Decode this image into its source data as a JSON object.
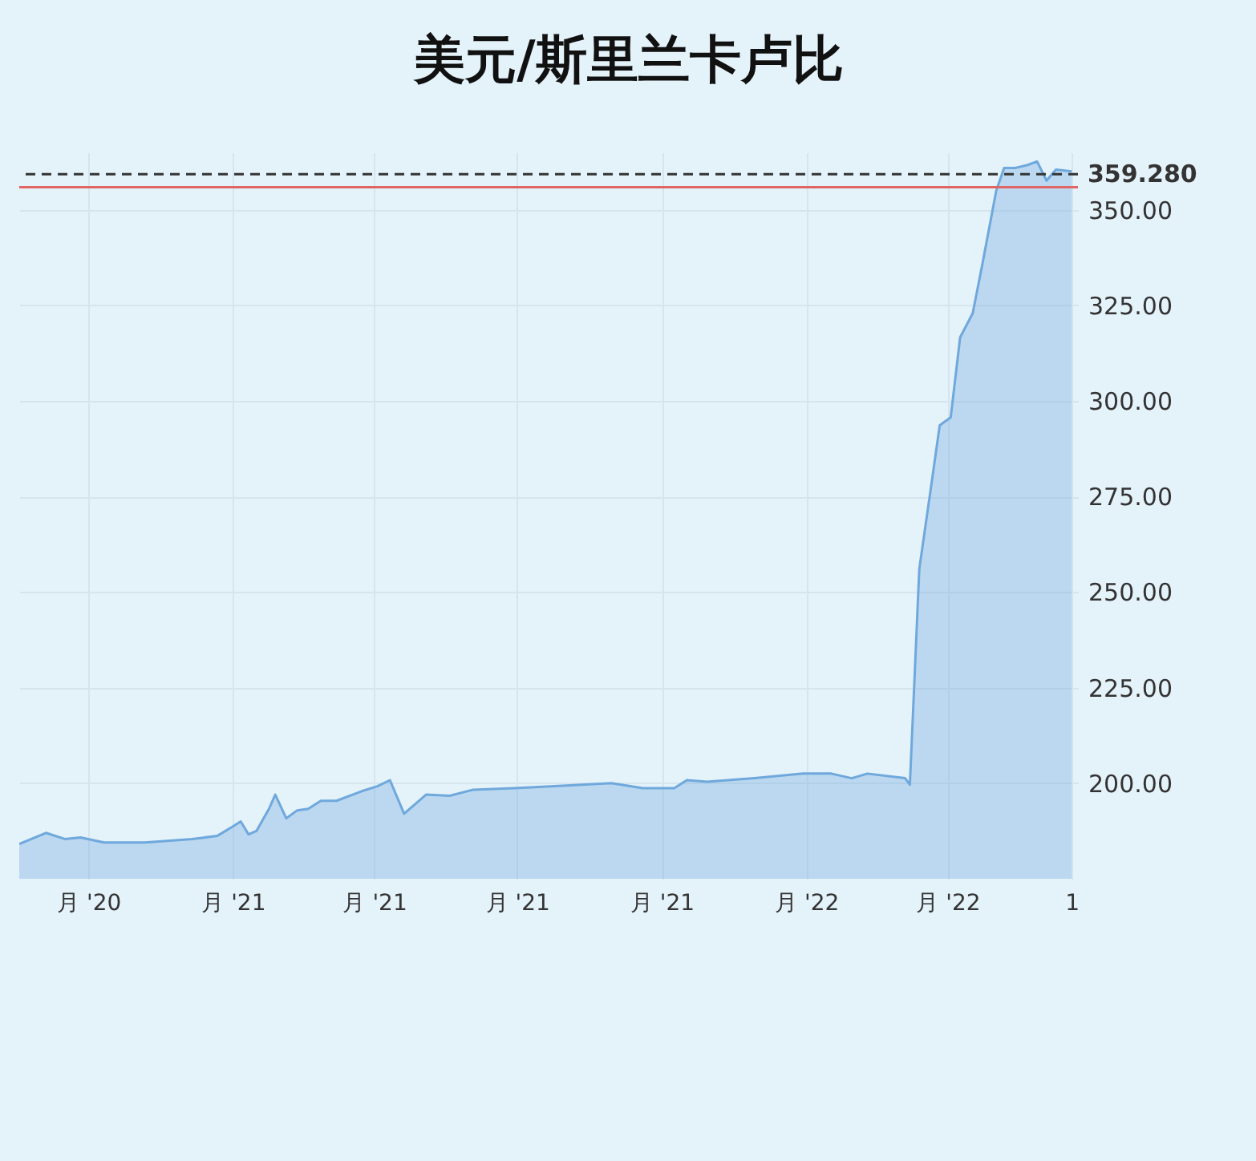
{
  "chart_data": {
    "type": "area",
    "title": "美元/斯里兰卡卢比",
    "x": [
      "2020-08-18",
      "2020-09-04",
      "2020-09-16",
      "2020-09-26",
      "2020-10-11",
      "2020-11-06",
      "2020-12-06",
      "2020-12-22",
      "2021-01-01",
      "2021-01-06",
      "2021-01-11",
      "2021-01-16",
      "2021-01-24",
      "2021-01-28",
      "2021-02-04",
      "2021-02-11",
      "2021-02-18",
      "2021-02-26",
      "2021-03-08",
      "2021-03-24",
      "2021-04-03",
      "2021-04-11",
      "2021-04-20",
      "2021-05-04",
      "2021-05-19",
      "2021-06-03",
      "2021-06-29",
      "2021-07-25",
      "2021-08-30",
      "2021-09-19",
      "2021-10-09",
      "2021-10-17",
      "2021-10-30",
      "2021-11-29",
      "2021-12-30",
      "2022-01-17",
      "2022-01-30",
      "2022-02-09",
      "2022-03-05",
      "2022-03-08",
      "2022-03-14",
      "2022-03-22",
      "2022-03-27",
      "2022-04-03",
      "2022-04-09",
      "2022-04-17",
      "2022-04-23",
      "2022-05-02",
      "2022-05-07",
      "2022-05-14",
      "2022-05-22",
      "2022-05-28",
      "2022-06-03",
      "2022-06-09",
      "2022-06-19"
    ],
    "series": [
      {
        "color": "#6fa8dc",
        "values": [
          184.1,
          187,
          185.4,
          185.8,
          184.5,
          184.5,
          185.4,
          186.2,
          188.7,
          190,
          186.6,
          187.5,
          193.3,
          197,
          190.8,
          192.9,
          193.3,
          195.4,
          195.4,
          197.9,
          199.2,
          200.8,
          192,
          197,
          196.7,
          198.3,
          198.7,
          199.2,
          200,
          198.7,
          198.7,
          200.8,
          200.4,
          201.3,
          202.5,
          202.5,
          201.3,
          202.5,
          201.3,
          199.6,
          256,
          279,
          293.6,
          295.7,
          316.6,
          322.9,
          335.4,
          355,
          360.9,
          360.9,
          361.7,
          362.6,
          357.6,
          360.5,
          360
        ]
      }
    ],
    "xlim": [
      "2020-08-18",
      "2022-06-23"
    ],
    "xticks": [
      {
        "value": "2020-10-01",
        "label": "月 '20"
      },
      {
        "value": "2021-01-01",
        "label": "月 '21"
      },
      {
        "value": "2021-04-01",
        "label": "月 '21"
      },
      {
        "value": "2021-07-01",
        "label": "月 '21"
      },
      {
        "value": "2021-10-01",
        "label": "月 '21"
      },
      {
        "value": "2022-01-01",
        "label": "月 '22"
      },
      {
        "value": "2022-04-01",
        "label": "月 '22"
      },
      {
        "value": "2022-06-19",
        "label": "1"
      }
    ],
    "ylim": [
      175,
      365
    ],
    "yticks": [
      {
        "value": 200,
        "label": "200.00"
      },
      {
        "value": 225,
        "label": "225.00"
      },
      {
        "value": 250,
        "label": "250.00"
      },
      {
        "value": 275,
        "label": "275.00"
      },
      {
        "value": 300,
        "label": "300.00"
      },
      {
        "value": 325,
        "label": "325.00"
      },
      {
        "value": 350,
        "label": "350.00"
      }
    ],
    "ref_lines": [
      {
        "axis": "y",
        "value": 359.28,
        "label": "359.280",
        "color": "#333333",
        "line_style": "dashed"
      },
      {
        "axis": "y",
        "value": 355.9,
        "color": "#e06666",
        "line_style": "solid"
      }
    ],
    "grid": true
  }
}
